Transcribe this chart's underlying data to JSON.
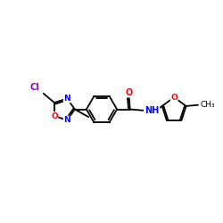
{
  "background_color": "#ffffff",
  "atom_colors": {
    "C": "#000000",
    "N": "#0000ff",
    "O": "#ff0000",
    "Cl": "#9900cc",
    "H": "#000000"
  },
  "bond_color": "#000000",
  "bond_width": 1.3,
  "figsize": [
    2.5,
    2.5
  ],
  "dpi": 100
}
